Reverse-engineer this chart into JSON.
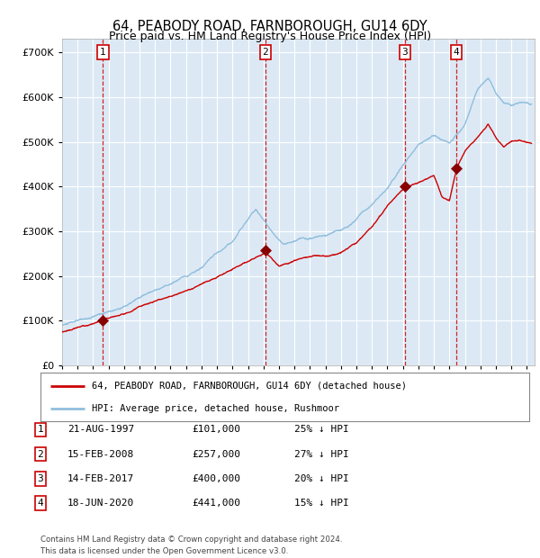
{
  "title": "64, PEABODY ROAD, FARNBOROUGH, GU14 6DY",
  "subtitle": "Price paid vs. HM Land Registry's House Price Index (HPI)",
  "title_fontsize": 10.5,
  "subtitle_fontsize": 9,
  "xlim_start": 1995.0,
  "xlim_end": 2025.5,
  "ylim_min": 0,
  "ylim_max": 730000,
  "yticks": [
    0,
    100000,
    200000,
    300000,
    400000,
    500000,
    600000,
    700000
  ],
  "ytick_labels": [
    "£0",
    "£100K",
    "£200K",
    "£300K",
    "£400K",
    "£500K",
    "£600K",
    "£700K"
  ],
  "plot_bg_color": "#dce9f5",
  "grid_color": "#ffffff",
  "sale_color": "#cc0000",
  "hpi_color": "#90bedd",
  "dashed_line_color": "#cc0000",
  "sale_marker_color": "#880000",
  "sales": [
    {
      "year": 1997.64,
      "price": 101000,
      "label": "1"
    },
    {
      "year": 2008.12,
      "price": 257000,
      "label": "2"
    },
    {
      "year": 2017.12,
      "price": 400000,
      "label": "3"
    },
    {
      "year": 2020.46,
      "price": 441000,
      "label": "4"
    }
  ],
  "legend_house_label": "64, PEABODY ROAD, FARNBOROUGH, GU14 6DY (detached house)",
  "legend_hpi_label": "HPI: Average price, detached house, Rushmoor",
  "table_rows": [
    [
      "1",
      "21-AUG-1997",
      "£101,000",
      "25% ↓ HPI"
    ],
    [
      "2",
      "15-FEB-2008",
      "£257,000",
      "27% ↓ HPI"
    ],
    [
      "3",
      "14-FEB-2017",
      "£400,000",
      "20% ↓ HPI"
    ],
    [
      "4",
      "18-JUN-2020",
      "£441,000",
      "15% ↓ HPI"
    ]
  ],
  "footer": "Contains HM Land Registry data © Crown copyright and database right 2024.\nThis data is licensed under the Open Government Licence v3.0."
}
